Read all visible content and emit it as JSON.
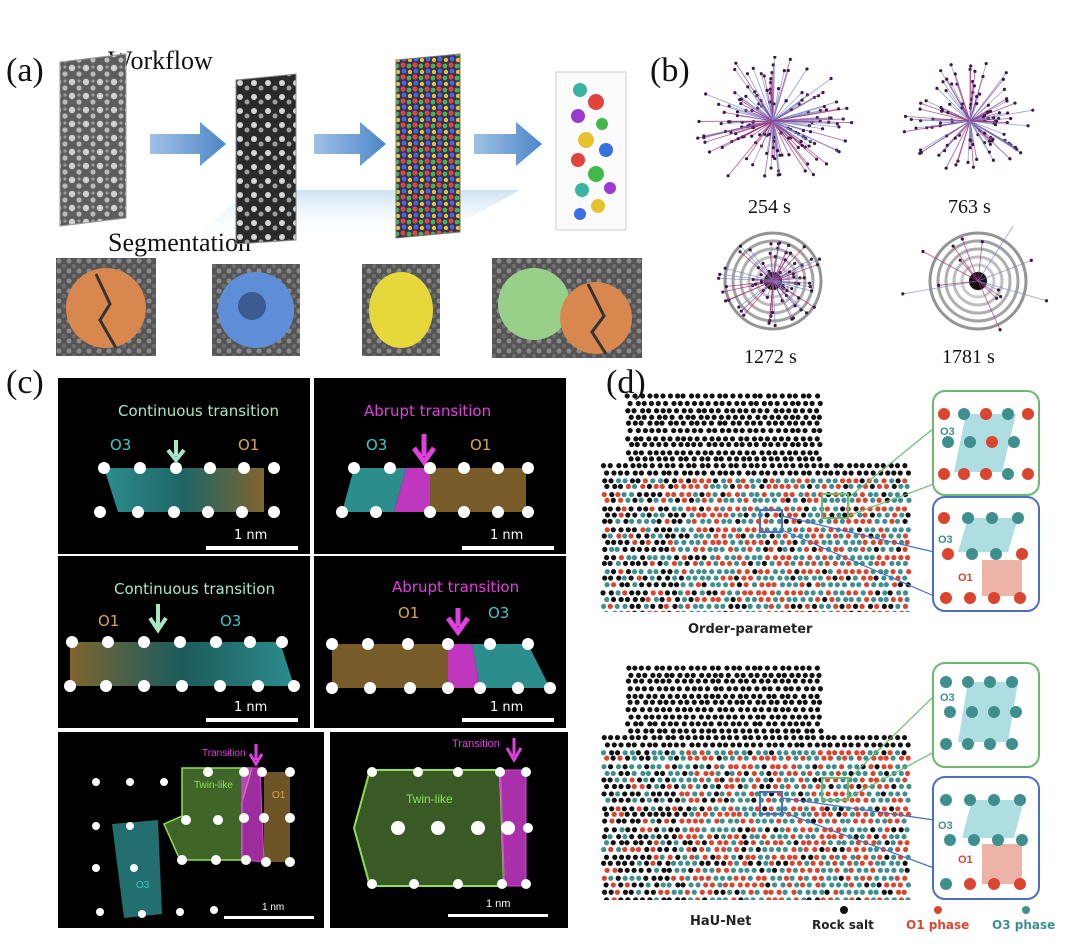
{
  "panel_a": {
    "letter": "(a)",
    "workflow_label": "Workflow",
    "segmentation_label": "Segmentation"
  },
  "panel_b": {
    "letter": "(b)",
    "times": [
      "254 s",
      "763 s",
      "1272 s",
      "1781 s"
    ]
  },
  "panel_c": {
    "letter": "(c)",
    "tiles": [
      {
        "title": "Continuous transition",
        "left_phase": "O3",
        "right_phase": "O1",
        "scale": "1 nm"
      },
      {
        "title": "Abrupt transition",
        "left_phase": "O3",
        "right_phase": "O1",
        "scale": "1 nm"
      },
      {
        "title": "Continuous transition",
        "left_phase": "O1",
        "right_phase": "O3",
        "scale": "1 nm"
      },
      {
        "title": "Abrupt transition",
        "left_phase": "O1",
        "right_phase": "O3",
        "scale": "1 nm"
      },
      {
        "transition": "Transition",
        "twin": "Twin-like",
        "o1": "O1",
        "o3": "O3",
        "scale": "1 nm"
      },
      {
        "transition": "Transition",
        "twin": "Twin-like",
        "scale": "1 nm"
      }
    ],
    "colors": {
      "o3": "#3fc9c9",
      "o1": "#d9a84a",
      "abrupt": "#e040e0",
      "continuous_arrow": "#a8e6c8",
      "twin": "#8ee05a"
    }
  },
  "panel_d": {
    "letter": "(d)",
    "top_title": "Order-parameter",
    "bottom_title": "HaU-Net",
    "inset_labels": {
      "o3": "O3",
      "o1": "O1"
    },
    "legend": [
      {
        "label": "Rock salt",
        "color": "#111111"
      },
      {
        "label": "O1 phase",
        "color": "#d9452e"
      },
      {
        "label": "O3 phase",
        "color": "#3f8f8f"
      }
    ]
  }
}
